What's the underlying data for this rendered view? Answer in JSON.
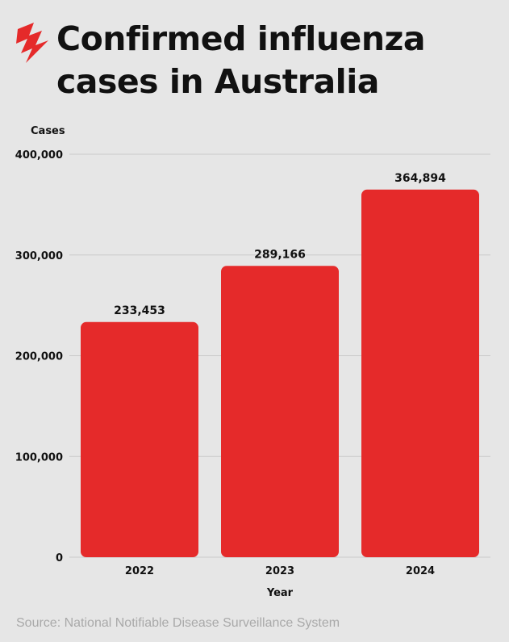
{
  "header": {
    "logo": "sbs-logo",
    "title_line1": "Confirmed influenza",
    "title_line2": "cases in Australia"
  },
  "colors": {
    "background": "#e6e6e6",
    "bar": "#e52a2a",
    "logo": "#e52a2a",
    "gridline": "#c9c9c9",
    "text": "#111111",
    "source_text": "#a9a9a9"
  },
  "chart_data": {
    "type": "bar",
    "categories": [
      "2022",
      "2023",
      "2024"
    ],
    "values": [
      233453,
      289166,
      364894
    ],
    "data_labels": [
      "233,453",
      "289,166",
      "364,894"
    ],
    "ylabel": "Cases",
    "xlabel": "Year",
    "ylim": [
      0,
      400000
    ],
    "yticks": [
      0,
      100000,
      200000,
      300000,
      400000
    ],
    "ytick_labels": [
      "0",
      "100,000",
      "200,000",
      "300,000",
      "400,000"
    ],
    "grid": true,
    "legend": "none"
  },
  "footer": {
    "source": "Source: National Notifiable Disease Surveillance System"
  }
}
